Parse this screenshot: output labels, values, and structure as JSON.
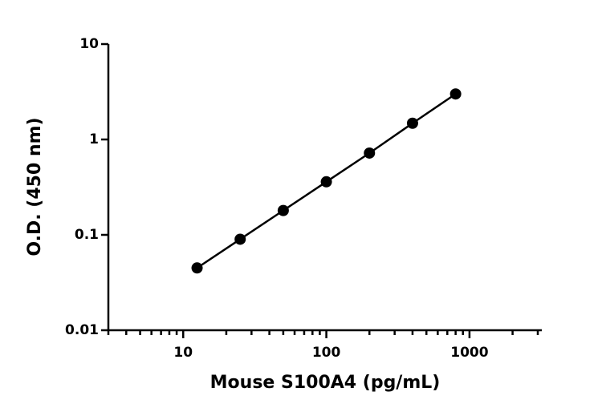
{
  "chart_data": {
    "type": "scatter",
    "x_label": "Mouse S100A4 (pg/mL)",
    "y_label": "O.D. (450 nm)",
    "x_log": true,
    "y_log": true,
    "xlim": [
      3,
      3200
    ],
    "xticks": [
      10,
      100,
      1000
    ],
    "ylim": [
      0.01,
      10
    ],
    "yticks": [
      0.01,
      0.1,
      1,
      10
    ],
    "series": [
      {
        "color": "#000000",
        "x": [
          12.5,
          25,
          50,
          100,
          200,
          400,
          800
        ],
        "values": [
          0.045,
          0.09,
          0.18,
          0.36,
          0.72,
          1.48,
          3.0
        ]
      }
    ]
  }
}
